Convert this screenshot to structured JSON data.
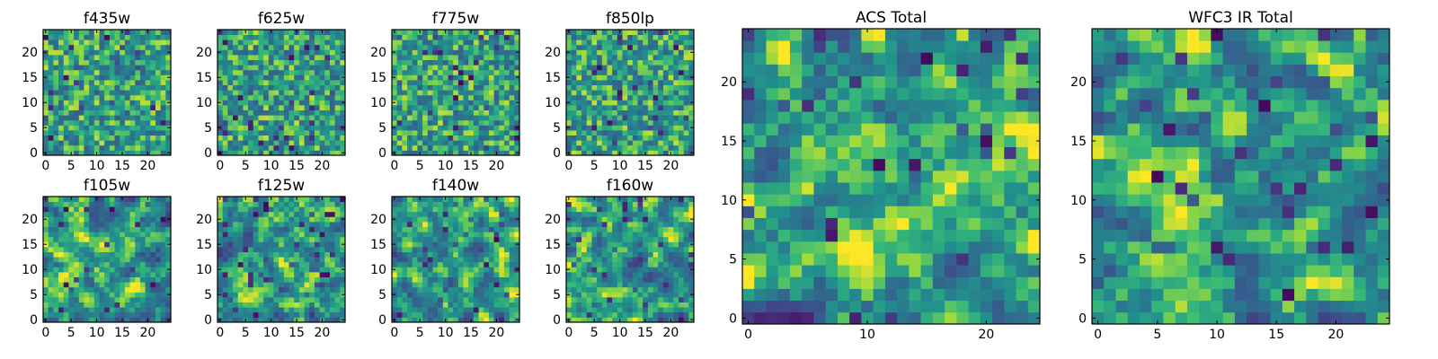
{
  "chart_data": [
    {
      "type": "heatmap",
      "title": "f435w",
      "seed": 11,
      "size": 25,
      "smooth": 0,
      "xticks": [
        "0",
        "5",
        "10",
        "15",
        "20"
      ],
      "yticks": [
        "0",
        "5",
        "10",
        "15",
        "20"
      ],
      "xlim": [
        0,
        24
      ],
      "ylim": [
        0,
        24
      ],
      "colormap": "viridis"
    },
    {
      "type": "heatmap",
      "title": "f625w",
      "seed": 23,
      "size": 25,
      "smooth": 0,
      "xticks": [
        "0",
        "5",
        "10",
        "15",
        "20"
      ],
      "yticks": [
        "0",
        "5",
        "10",
        "15",
        "20"
      ],
      "xlim": [
        0,
        24
      ],
      "ylim": [
        0,
        24
      ],
      "colormap": "viridis"
    },
    {
      "type": "heatmap",
      "title": "f775w",
      "seed": 37,
      "size": 25,
      "smooth": 0,
      "xticks": [
        "0",
        "5",
        "10",
        "15",
        "20"
      ],
      "yticks": [
        "0",
        "5",
        "10",
        "15",
        "20"
      ],
      "xlim": [
        0,
        24
      ],
      "ylim": [
        0,
        24
      ],
      "colormap": "viridis"
    },
    {
      "type": "heatmap",
      "title": "f850lp",
      "seed": 41,
      "size": 25,
      "smooth": 0,
      "xticks": [
        "0",
        "5",
        "10",
        "15",
        "20"
      ],
      "yticks": [
        "0",
        "5",
        "10",
        "15",
        "20"
      ],
      "xlim": [
        0,
        24
      ],
      "ylim": [
        0,
        24
      ],
      "colormap": "viridis"
    },
    {
      "type": "heatmap",
      "title": "f105w",
      "seed": 53,
      "size": 25,
      "smooth": 1,
      "xticks": [
        "0",
        "5",
        "10",
        "15",
        "20"
      ],
      "yticks": [
        "0",
        "5",
        "10",
        "15",
        "20"
      ],
      "xlim": [
        0,
        24
      ],
      "ylim": [
        0,
        24
      ],
      "colormap": "viridis"
    },
    {
      "type": "heatmap",
      "title": "f125w",
      "seed": 67,
      "size": 25,
      "smooth": 1,
      "xticks": [
        "0",
        "5",
        "10",
        "15",
        "20"
      ],
      "yticks": [
        "0",
        "5",
        "10",
        "15",
        "20"
      ],
      "xlim": [
        0,
        24
      ],
      "ylim": [
        0,
        24
      ],
      "colormap": "viridis"
    },
    {
      "type": "heatmap",
      "title": "f140w",
      "seed": 79,
      "size": 25,
      "smooth": 1,
      "xticks": [
        "0",
        "5",
        "10",
        "15",
        "20"
      ],
      "yticks": [
        "0",
        "5",
        "10",
        "15",
        "20"
      ],
      "xlim": [
        0,
        24
      ],
      "ylim": [
        0,
        24
      ],
      "colormap": "viridis"
    },
    {
      "type": "heatmap",
      "title": "f160w",
      "seed": 83,
      "size": 25,
      "smooth": 1,
      "xticks": [
        "0",
        "5",
        "10",
        "15",
        "20"
      ],
      "yticks": [
        "0",
        "5",
        "10",
        "15",
        "20"
      ],
      "xlim": [
        0,
        24
      ],
      "ylim": [
        0,
        24
      ],
      "colormap": "viridis"
    },
    {
      "type": "heatmap",
      "title": "ACS Total",
      "seed": 97,
      "size": 25,
      "smooth": 1,
      "xticks": [
        "0",
        "10",
        "20"
      ],
      "yticks": [
        "0",
        "5",
        "10",
        "15",
        "20"
      ],
      "xlim": [
        0,
        24
      ],
      "ylim": [
        0,
        24
      ],
      "colormap": "viridis"
    },
    {
      "type": "heatmap",
      "title": "WFC3 IR Total",
      "seed": 101,
      "size": 25,
      "smooth": 1,
      "xticks": [
        "0",
        "5",
        "10",
        "15",
        "20"
      ],
      "yticks": [
        "0",
        "5",
        "10",
        "15",
        "20"
      ],
      "xlim": [
        0,
        24
      ],
      "ylim": [
        0,
        24
      ],
      "colormap": "viridis"
    }
  ]
}
